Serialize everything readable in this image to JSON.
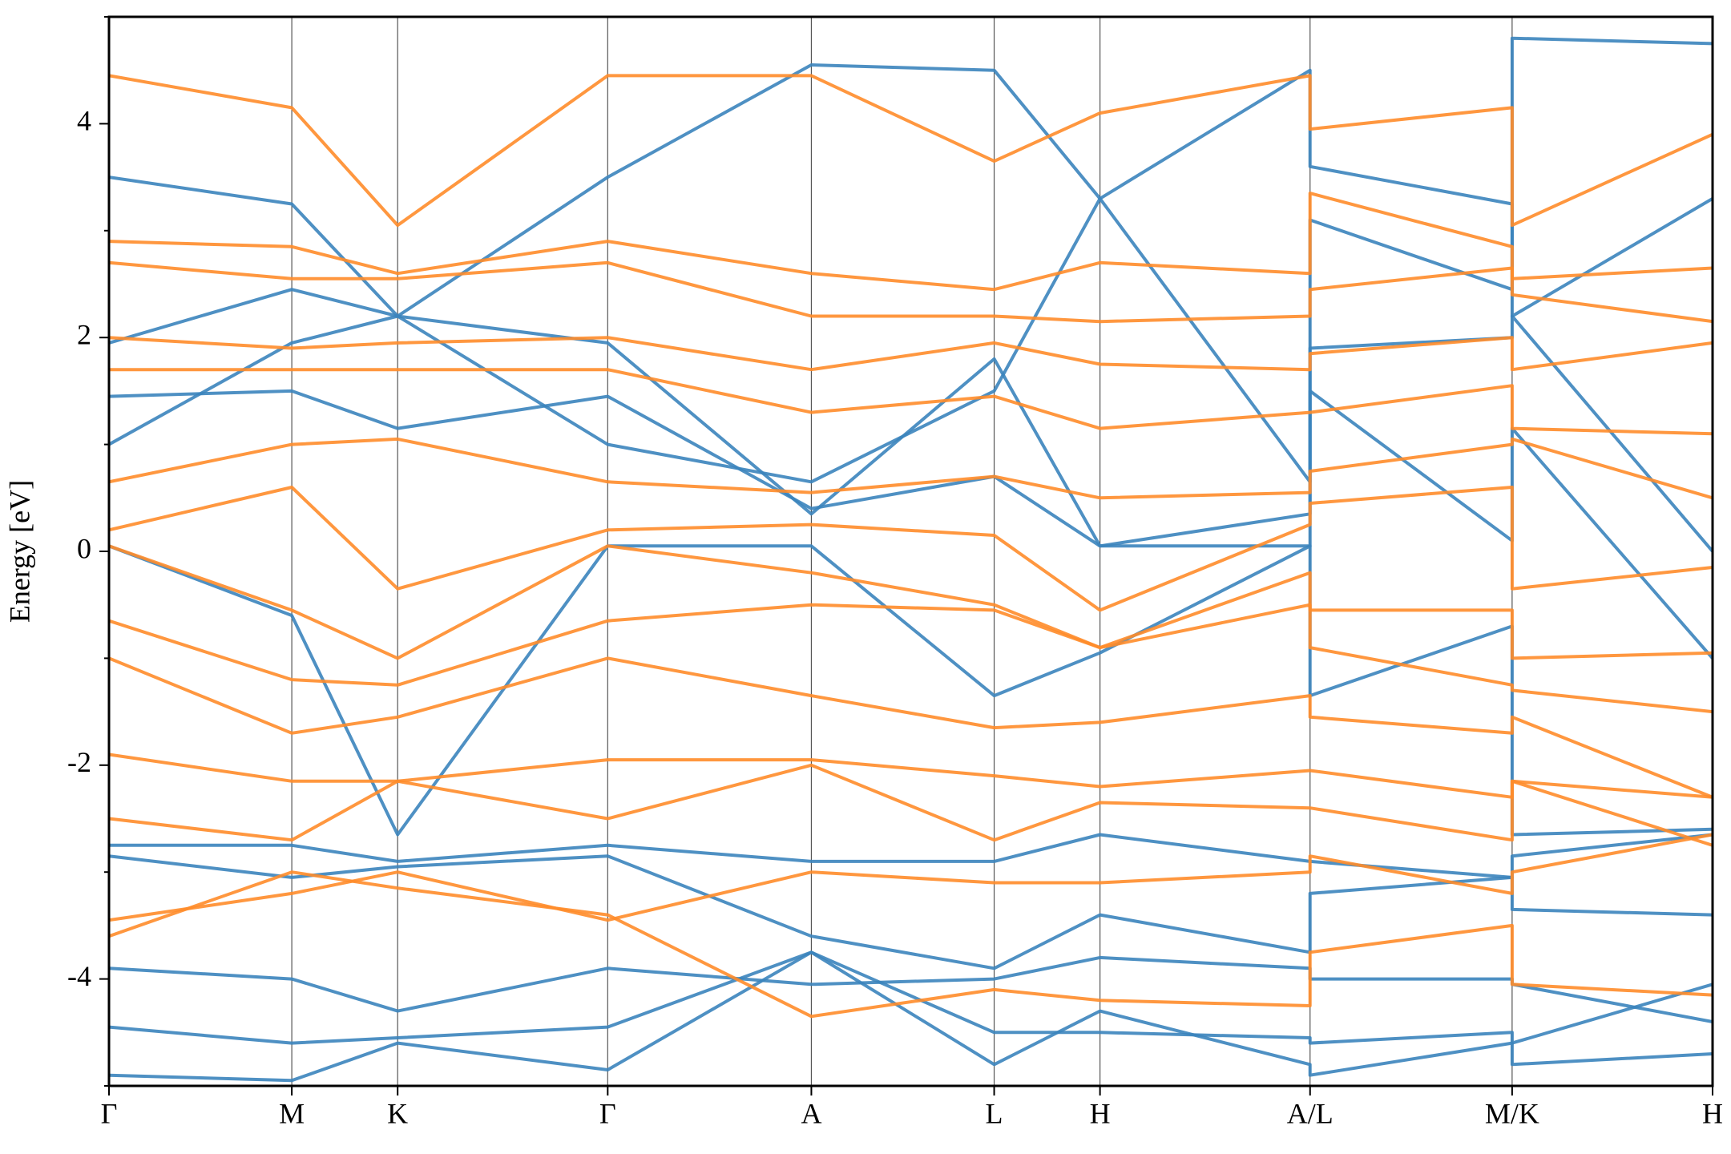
{
  "chart_data": {
    "type": "line",
    "y_label": "Energy [eV]",
    "ylim": [
      -5,
      5
    ],
    "yticks": [
      -4,
      -2,
      0,
      2,
      4
    ],
    "yminor": [
      -5,
      -3,
      -1,
      1,
      3,
      5
    ],
    "xlim": [
      0,
      1
    ],
    "xticks": [
      {
        "value": 0,
        "label": "Γ"
      },
      {
        "value": 0.114,
        "label": "M"
      },
      {
        "value": 0.18,
        "label": "K"
      },
      {
        "value": 0.311,
        "label": "Γ"
      },
      {
        "value": 0.438,
        "label": "A"
      },
      {
        "value": 0.552,
        "label": "L"
      },
      {
        "value": 0.618,
        "label": "H"
      },
      {
        "value": 0.749,
        "label": "A/L"
      },
      {
        "value": 0.875,
        "label": "M/K"
      },
      {
        "value": 1,
        "label": "H"
      }
    ],
    "grid": "x",
    "x": [
      0,
      0.114,
      0.18,
      0.311,
      0.438,
      0.552,
      0.618,
      0.749,
      0.749,
      0.875,
      0.875,
      1
    ],
    "series": [
      {
        "color": "#3b84bd",
        "values": [
          3.5,
          3.25,
          2.2,
          3.5,
          4.55,
          4.5,
          3.3,
          4.5,
          3.6,
          3.25,
          2.2,
          3.3
        ]
      },
      {
        "color": "#3b84bd",
        "values": [
          1.95,
          2.45,
          2.2,
          1.95,
          0.35,
          1.8,
          0.05,
          0.35,
          1.5,
          0.1,
          1.15,
          -1.0
        ]
      },
      {
        "color": "#3b84bd",
        "values": [
          1.45,
          1.5,
          1.15,
          1.45,
          0.4,
          0.7,
          0.05,
          0.05,
          1.9,
          2.0,
          2.2,
          0.0
        ]
      },
      {
        "color": "#3b84bd",
        "values": [
          0.05,
          -0.6,
          -2.65,
          0.05,
          0.05,
          -1.35,
          -0.95,
          0.05,
          -1.35,
          -0.7,
          -2.65,
          -2.6
        ]
      },
      {
        "color": "#3b84bd",
        "values": [
          -2.75,
          -2.75,
          -2.9,
          -2.75,
          -2.9,
          -2.9,
          -2.65,
          -2.9,
          -2.9,
          -3.05,
          -2.85,
          -2.65
        ]
      },
      {
        "color": "#3b84bd",
        "values": [
          -2.85,
          -3.05,
          -2.95,
          -2.85,
          -3.6,
          -3.9,
          -3.4,
          -3.75,
          -3.2,
          -3.05,
          -3.35,
          -3.4
        ]
      },
      {
        "color": "#3b84bd",
        "values": [
          -3.9,
          -4.0,
          -4.3,
          -3.9,
          -4.05,
          -4.0,
          -3.8,
          -3.9,
          -4.0,
          -4.0,
          -4.05,
          -4.4
        ]
      },
      {
        "color": "#3b84bd",
        "values": [
          -4.45,
          -4.6,
          -4.55,
          -4.45,
          -3.75,
          -4.5,
          -4.5,
          -4.55,
          -4.6,
          -4.5,
          -4.6,
          -4.05
        ]
      },
      {
        "color": "#3b84bd",
        "values": [
          -4.9,
          -4.95,
          -4.6,
          -4.85,
          -3.75,
          -4.8,
          -4.3,
          -4.8,
          -4.9,
          -4.6,
          -4.8,
          -4.7
        ]
      },
      {
        "color": "#3b84bd",
        "values": [
          1.0,
          1.95,
          2.2,
          1.0,
          0.65,
          1.5,
          3.3,
          0.65,
          3.1,
          2.45,
          4.8,
          4.75
        ]
      },
      {
        "color": "#ff8c2a",
        "values": [
          4.45,
          4.15,
          3.05,
          4.45,
          4.45,
          3.65,
          4.1,
          4.45,
          3.95,
          4.15,
          3.05,
          3.9
        ]
      },
      {
        "color": "#ff8c2a",
        "values": [
          2.9,
          2.85,
          2.6,
          2.9,
          2.6,
          2.45,
          2.7,
          2.6,
          3.35,
          2.85,
          2.55,
          2.65
        ]
      },
      {
        "color": "#ff8c2a",
        "values": [
          2.7,
          2.55,
          2.55,
          2.7,
          2.2,
          2.2,
          2.15,
          2.2,
          2.45,
          2.65,
          2.4,
          2.15
        ]
      },
      {
        "color": "#ff8c2a",
        "values": [
          2.0,
          1.9,
          1.95,
          2.0,
          1.7,
          1.95,
          1.75,
          1.7,
          1.85,
          2.0,
          1.7,
          1.95
        ]
      },
      {
        "color": "#ff8c2a",
        "values": [
          1.7,
          1.7,
          1.7,
          1.7,
          1.3,
          1.45,
          1.15,
          1.3,
          1.3,
          1.55,
          1.15,
          1.1
        ]
      },
      {
        "color": "#ff8c2a",
        "values": [
          0.65,
          1.0,
          1.05,
          0.65,
          0.55,
          0.7,
          0.5,
          0.55,
          0.75,
          1.0,
          1.05,
          0.5
        ]
      },
      {
        "color": "#ff8c2a",
        "values": [
          0.2,
          0.6,
          -0.35,
          0.2,
          0.25,
          0.15,
          -0.55,
          0.25,
          0.45,
          0.6,
          -0.35,
          -0.15
        ]
      },
      {
        "color": "#ff8c2a",
        "values": [
          0.05,
          -0.55,
          -1.0,
          0.05,
          -0.2,
          -0.5,
          -0.9,
          -0.2,
          -0.55,
          -0.55,
          -1.0,
          -0.95
        ]
      },
      {
        "color": "#ff8c2a",
        "values": [
          -0.65,
          -1.2,
          -1.25,
          -0.65,
          -0.5,
          -0.55,
          -0.9,
          -0.5,
          -0.9,
          -1.25,
          -1.3,
          -1.5
        ]
      },
      {
        "color": "#ff8c2a",
        "values": [
          -1.0,
          -1.7,
          -1.55,
          -1.0,
          -1.35,
          -1.65,
          -1.6,
          -1.35,
          -1.55,
          -1.7,
          -1.55,
          -2.3
        ]
      },
      {
        "color": "#ff8c2a",
        "values": [
          -1.9,
          -2.15,
          -2.15,
          -1.95,
          -1.95,
          -2.1,
          -2.2,
          -2.05,
          -2.05,
          -2.3,
          -2.15,
          -2.3
        ]
      },
      {
        "color": "#ff8c2a",
        "values": [
          -2.5,
          -2.7,
          -2.15,
          -2.5,
          -2.0,
          -2.7,
          -2.35,
          -2.4,
          -2.4,
          -2.7,
          -2.15,
          -2.75
        ]
      },
      {
        "color": "#ff8c2a",
        "values": [
          -3.45,
          -3.2,
          -3.0,
          -3.45,
          -3.0,
          -3.1,
          -3.1,
          -3.0,
          -2.85,
          -3.2,
          -3.0,
          -2.65
        ]
      },
      {
        "color": "#ff8c2a",
        "values": [
          -3.6,
          -3.0,
          -3.15,
          -3.4,
          -4.35,
          -4.1,
          -4.2,
          -4.25,
          -3.75,
          -3.5,
          -4.05,
          -4.15
        ]
      }
    ]
  }
}
